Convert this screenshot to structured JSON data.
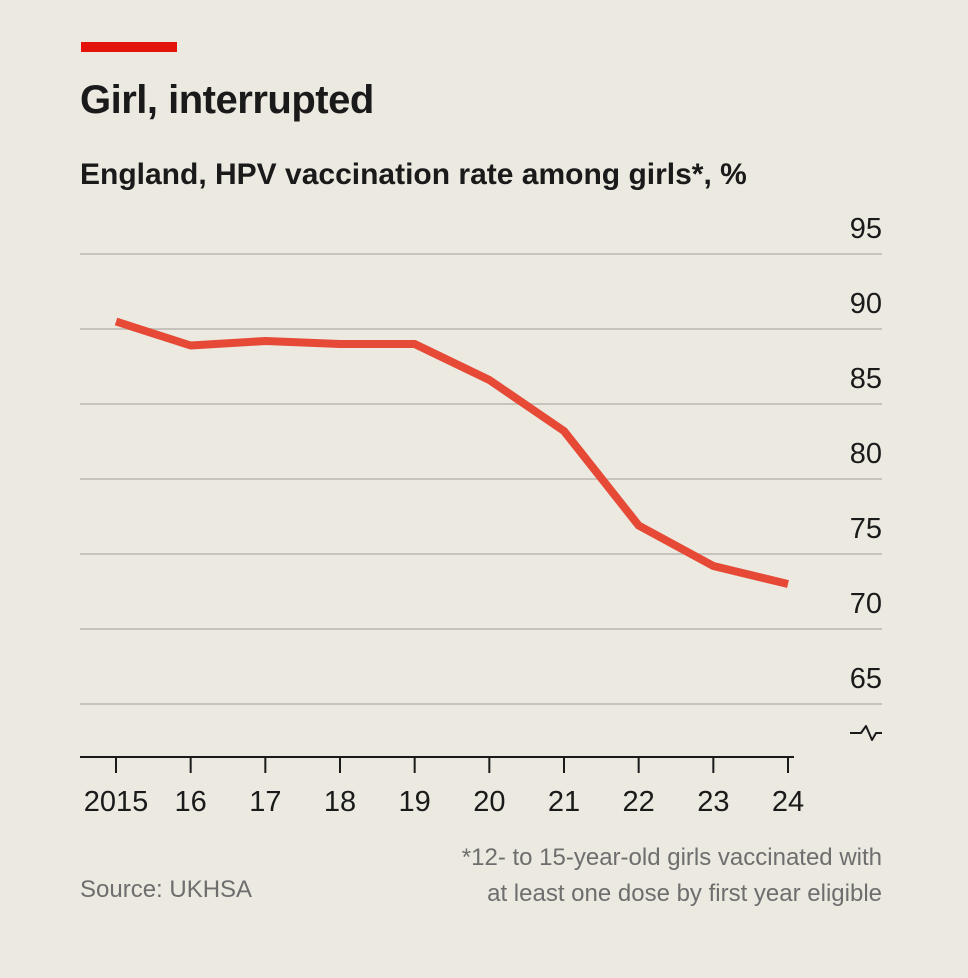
{
  "colors": {
    "background": "#ebe9e0",
    "accent": "#e3120b",
    "line": "#e64a36",
    "grid": "#c5c3bb",
    "text": "#1a1a1a",
    "muted": "#6e6e6e"
  },
  "chart_data": {
    "type": "line",
    "title": "Girl, interrupted",
    "subtitle": "England, HPV vaccination rate among girls*, %",
    "categories": [
      "2015",
      "16",
      "17",
      "18",
      "19",
      "20",
      "21",
      "22",
      "23",
      "24"
    ],
    "series": [
      {
        "name": "",
        "values": [
          90.5,
          88.9,
          89.2,
          89.0,
          89.0,
          86.6,
          83.2,
          76.9,
          74.2,
          73.0
        ]
      }
    ],
    "y_ticks": [
      "95",
      "90",
      "85",
      "80",
      "75",
      "70",
      "65"
    ],
    "ylim": [
      65,
      95
    ],
    "y_axis_break": true,
    "y_axis_position": "right",
    "grid": true,
    "legend": "none",
    "xlabel": "",
    "ylabel": ""
  },
  "footnote": {
    "line1": "*12- to 15-year-old girls vaccinated with",
    "line2": "at least one dose by first year eligible"
  },
  "source": "Source: UKHSA"
}
